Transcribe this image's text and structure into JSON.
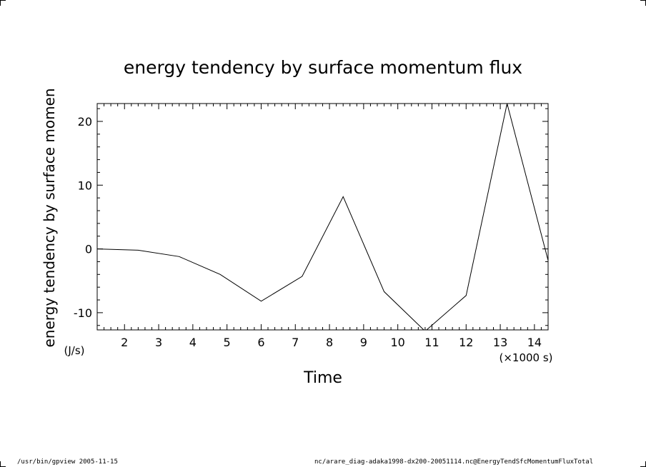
{
  "chart_data": {
    "type": "line",
    "title": "energy tendency by surface momentum flux",
    "xlabel": "Time",
    "x_unit": "(×1000 s)",
    "ylabel": "energy tendency by surface momen",
    "y_unit": "(J/s)",
    "xlim": [
      1.2,
      14.4
    ],
    "ylim": [
      -12.7,
      22.8
    ],
    "xticks": [
      2,
      3,
      4,
      5,
      6,
      7,
      8,
      9,
      10,
      11,
      12,
      13,
      14
    ],
    "yticks": [
      -10,
      0,
      10,
      20
    ],
    "x": [
      1.2,
      2.4,
      3.6,
      4.8,
      6.0,
      7.2,
      8.4,
      9.6,
      10.8,
      12.0,
      13.2,
      14.4
    ],
    "series": [
      {
        "values": [
          0.0,
          -0.2,
          -1.2,
          -4.0,
          -8.2,
          -4.3,
          8.2,
          -6.7,
          -12.9,
          -7.3,
          22.8,
          -1.8
        ]
      }
    ],
    "grid": false
  },
  "footer": {
    "left": "/usr/bin/gpview   2005-11-15",
    "right": "nc/arare_diag-adaka1998-dx200-20051114.nc@EnergyTendSfcMomentumFluxTotal"
  },
  "colors": {
    "line": "#000000",
    "background": "#ffffff"
  }
}
